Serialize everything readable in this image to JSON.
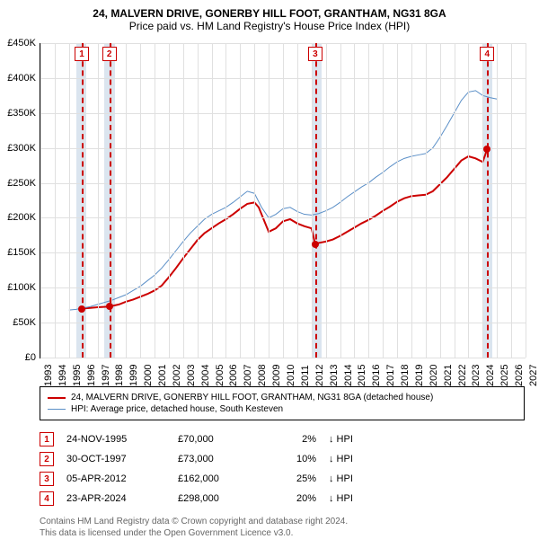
{
  "title": "24, MALVERN DRIVE, GONERBY HILL FOOT, GRANTHAM, NG31 8GA",
  "subtitle": "Price paid vs. HM Land Registry's House Price Index (HPI)",
  "chart": {
    "type": "line",
    "x": {
      "min": 1993,
      "max": 2027,
      "ticks": [
        1993,
        1994,
        1995,
        1996,
        1997,
        1998,
        1999,
        2000,
        2001,
        2002,
        2003,
        2004,
        2005,
        2006,
        2007,
        2008,
        2009,
        2010,
        2011,
        2012,
        2013,
        2014,
        2015,
        2016,
        2017,
        2018,
        2019,
        2020,
        2021,
        2022,
        2023,
        2024,
        2025,
        2026,
        2027
      ]
    },
    "y": {
      "min": 0,
      "max": 450000,
      "tick_step": 50000,
      "label_prefix": "£",
      "label_suffix": "K"
    },
    "grid_color": "#e0e0e0",
    "shades": [
      {
        "from": 1995.5,
        "to": 1996.2,
        "color": "#dbe5ef"
      },
      {
        "from": 1997.5,
        "to": 1998.2,
        "color": "#dbe5ef"
      },
      {
        "from": 2012.0,
        "to": 2012.7,
        "color": "#dbe5ef"
      },
      {
        "from": 2024.0,
        "to": 2024.7,
        "color": "#dbe5ef"
      }
    ],
    "vlines": [
      {
        "x": 1995.9,
        "color": "#cc0000"
      },
      {
        "x": 1997.83,
        "color": "#cc0000"
      },
      {
        "x": 2012.26,
        "color": "#cc0000"
      },
      {
        "x": 2024.31,
        "color": "#cc0000"
      }
    ],
    "markers": [
      {
        "n": "1",
        "x": 1995.9,
        "color": "#cc0000"
      },
      {
        "n": "2",
        "x": 1997.83,
        "color": "#cc0000"
      },
      {
        "n": "3",
        "x": 2012.26,
        "color": "#cc0000"
      },
      {
        "n": "4",
        "x": 2024.31,
        "color": "#cc0000"
      }
    ],
    "series": [
      {
        "name": "property",
        "label": "24, MALVERN DRIVE, GONERBY HILL FOOT, GRANTHAM, NG31 8GA (detached house)",
        "color": "#cc0000",
        "width": 2,
        "points": [
          [
            1995.9,
            70000
          ],
          [
            1996.5,
            71000
          ],
          [
            1997.0,
            72000
          ],
          [
            1997.83,
            73000
          ],
          [
            1998.5,
            76000
          ],
          [
            1999.0,
            80000
          ],
          [
            1999.5,
            83000
          ],
          [
            2000.0,
            87000
          ],
          [
            2000.5,
            91000
          ],
          [
            2001.0,
            96000
          ],
          [
            2001.5,
            103000
          ],
          [
            2002.0,
            115000
          ],
          [
            2002.5,
            128000
          ],
          [
            2003.0,
            142000
          ],
          [
            2003.5,
            155000
          ],
          [
            2004.0,
            168000
          ],
          [
            2004.5,
            178000
          ],
          [
            2005.0,
            185000
          ],
          [
            2005.5,
            192000
          ],
          [
            2006.0,
            198000
          ],
          [
            2006.5,
            205000
          ],
          [
            2007.0,
            213000
          ],
          [
            2007.5,
            220000
          ],
          [
            2008.0,
            222000
          ],
          [
            2008.3,
            215000
          ],
          [
            2008.7,
            195000
          ],
          [
            2009.0,
            180000
          ],
          [
            2009.5,
            185000
          ],
          [
            2010.0,
            195000
          ],
          [
            2010.5,
            198000
          ],
          [
            2011.0,
            192000
          ],
          [
            2011.5,
            188000
          ],
          [
            2012.0,
            185000
          ],
          [
            2012.26,
            162000
          ],
          [
            2012.5,
            164000
          ],
          [
            2013.0,
            166000
          ],
          [
            2013.5,
            169000
          ],
          [
            2014.0,
            174000
          ],
          [
            2014.5,
            180000
          ],
          [
            2015.0,
            186000
          ],
          [
            2015.5,
            192000
          ],
          [
            2016.0,
            197000
          ],
          [
            2016.5,
            203000
          ],
          [
            2017.0,
            210000
          ],
          [
            2017.5,
            216000
          ],
          [
            2018.0,
            223000
          ],
          [
            2018.5,
            228000
          ],
          [
            2019.0,
            231000
          ],
          [
            2019.5,
            232000
          ],
          [
            2020.0,
            233000
          ],
          [
            2020.5,
            238000
          ],
          [
            2021.0,
            248000
          ],
          [
            2021.5,
            258000
          ],
          [
            2022.0,
            270000
          ],
          [
            2022.5,
            282000
          ],
          [
            2023.0,
            288000
          ],
          [
            2023.5,
            285000
          ],
          [
            2024.0,
            280000
          ],
          [
            2024.31,
            298000
          ]
        ],
        "dots": [
          [
            1995.9,
            70000
          ],
          [
            1997.83,
            73000
          ],
          [
            2012.26,
            162000
          ],
          [
            2024.31,
            298000
          ]
        ]
      },
      {
        "name": "hpi",
        "label": "HPI: Average price, detached house, South Kesteven",
        "color": "#5b8fc7",
        "width": 1,
        "points": [
          [
            1995.0,
            68000
          ],
          [
            1995.5,
            69000
          ],
          [
            1996.0,
            71000
          ],
          [
            1996.5,
            73000
          ],
          [
            1997.0,
            76000
          ],
          [
            1997.5,
            79000
          ],
          [
            1998.0,
            82000
          ],
          [
            1998.5,
            86000
          ],
          [
            1999.0,
            90000
          ],
          [
            1999.5,
            96000
          ],
          [
            2000.0,
            102000
          ],
          [
            2000.5,
            110000
          ],
          [
            2001.0,
            118000
          ],
          [
            2001.5,
            128000
          ],
          [
            2002.0,
            140000
          ],
          [
            2002.5,
            153000
          ],
          [
            2003.0,
            166000
          ],
          [
            2003.5,
            178000
          ],
          [
            2004.0,
            188000
          ],
          [
            2004.5,
            198000
          ],
          [
            2005.0,
            205000
          ],
          [
            2005.5,
            210000
          ],
          [
            2006.0,
            215000
          ],
          [
            2006.5,
            222000
          ],
          [
            2007.0,
            230000
          ],
          [
            2007.5,
            238000
          ],
          [
            2008.0,
            235000
          ],
          [
            2008.5,
            215000
          ],
          [
            2009.0,
            200000
          ],
          [
            2009.5,
            205000
          ],
          [
            2010.0,
            213000
          ],
          [
            2010.5,
            215000
          ],
          [
            2011.0,
            209000
          ],
          [
            2011.5,
            205000
          ],
          [
            2012.0,
            204000
          ],
          [
            2012.5,
            206000
          ],
          [
            2013.0,
            210000
          ],
          [
            2013.5,
            215000
          ],
          [
            2014.0,
            222000
          ],
          [
            2014.5,
            230000
          ],
          [
            2015.0,
            237000
          ],
          [
            2015.5,
            244000
          ],
          [
            2016.0,
            250000
          ],
          [
            2016.5,
            258000
          ],
          [
            2017.0,
            265000
          ],
          [
            2017.5,
            273000
          ],
          [
            2018.0,
            280000
          ],
          [
            2018.5,
            285000
          ],
          [
            2019.0,
            288000
          ],
          [
            2019.5,
            290000
          ],
          [
            2020.0,
            292000
          ],
          [
            2020.5,
            300000
          ],
          [
            2021.0,
            315000
          ],
          [
            2021.5,
            332000
          ],
          [
            2022.0,
            350000
          ],
          [
            2022.5,
            368000
          ],
          [
            2023.0,
            380000
          ],
          [
            2023.5,
            382000
          ],
          [
            2024.0,
            375000
          ],
          [
            2024.5,
            372000
          ],
          [
            2025.0,
            370000
          ]
        ]
      }
    ]
  },
  "legend": {
    "border_color": "#000000"
  },
  "transactions": [
    {
      "n": "1",
      "date": "24-NOV-1995",
      "price": "£70,000",
      "pct": "2%",
      "arrow": "↓",
      "rel": "HPI",
      "color": "#cc0000"
    },
    {
      "n": "2",
      "date": "30-OCT-1997",
      "price": "£73,000",
      "pct": "10%",
      "arrow": "↓",
      "rel": "HPI",
      "color": "#cc0000"
    },
    {
      "n": "3",
      "date": "05-APR-2012",
      "price": "£162,000",
      "pct": "25%",
      "arrow": "↓",
      "rel": "HPI",
      "color": "#cc0000"
    },
    {
      "n": "4",
      "date": "23-APR-2024",
      "price": "£298,000",
      "pct": "20%",
      "arrow": "↓",
      "rel": "HPI",
      "color": "#cc0000"
    }
  ],
  "footer": {
    "line1": "Contains HM Land Registry data © Crown copyright and database right 2024.",
    "line2": "This data is licensed under the Open Government Licence v3.0."
  }
}
